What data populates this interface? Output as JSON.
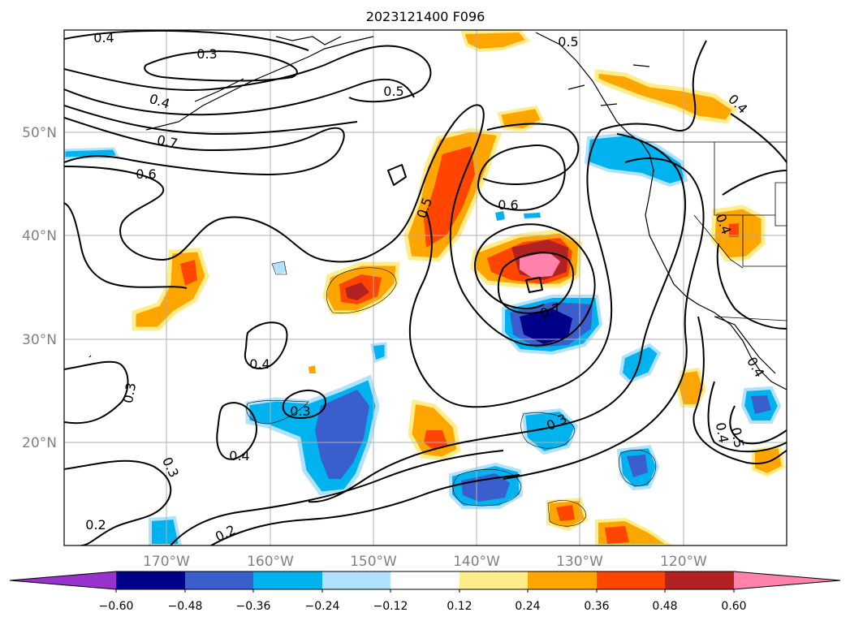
{
  "title": "2023121400 F096",
  "map": {
    "lat_labels": [
      "50°N",
      "40°N",
      "30°N",
      "20°N"
    ],
    "lon_labels": [
      "170°W",
      "160°W",
      "150°W",
      "140°W",
      "130°W",
      "120°W"
    ],
    "contour_labels": [
      "0.4",
      "0.3",
      "0.5",
      "0.5",
      "0.4",
      "0.7",
      "0.6",
      "0.5",
      "0.6",
      "0.4",
      "0.4",
      "0.7",
      "0.4",
      "0.3",
      "0.3",
      "0.3",
      "0.4",
      "0.3",
      "0.2",
      "0.2",
      "0.4",
      "0.5",
      "0.4"
    ]
  },
  "colorbar": {
    "ticks": [
      "−0.60",
      "−0.48",
      "−0.36",
      "−0.24",
      "−0.12",
      "0.12",
      "0.24",
      "0.36",
      "0.48",
      "0.60"
    ],
    "colors": [
      "#9932cc",
      "#00008b",
      "#3a5fcd",
      "#00b2ee",
      "#b0e2ff",
      "#ffffff",
      "#ffec8b",
      "#ffa500",
      "#ff4500",
      "#b22222",
      "#ff82ab"
    ]
  }
}
